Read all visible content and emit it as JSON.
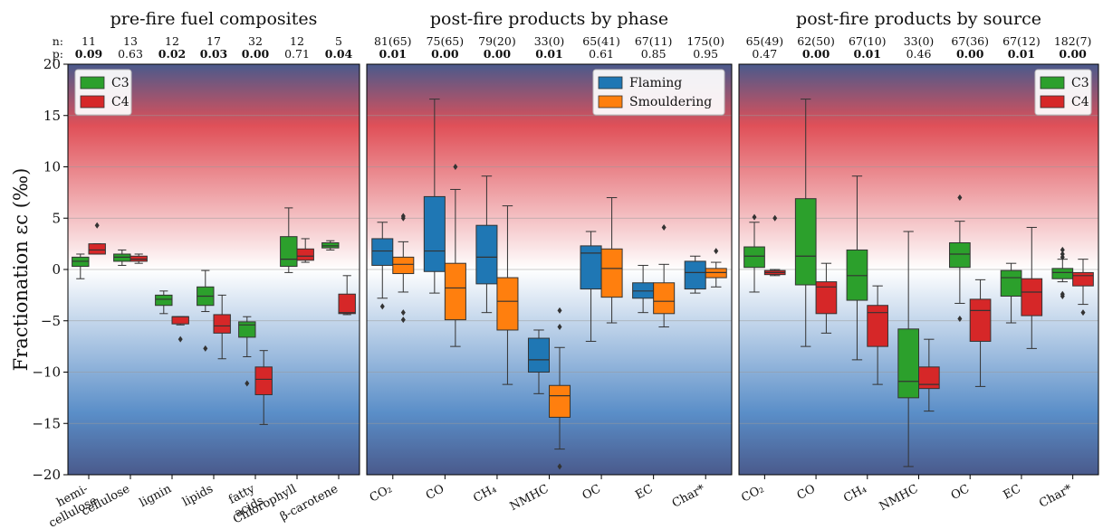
{
  "colors": {
    "c3": "#2ca02c",
    "c4": "#d62728",
    "flaming": "#1f77b4",
    "smouldering": "#ff7f0e",
    "bg_top": "#4a5a8c",
    "bg_red": "#e05058",
    "bg_mid": "#ffffff",
    "bg_blue": "#5a8ec8",
    "bg_bottom": "#4a5a8c"
  },
  "chart_data": {
    "type": "box",
    "ylabel": "Fractionation εc (‰)",
    "ylim": [
      -20,
      20
    ],
    "yticks": [
      "−20",
      "−15",
      "−10",
      "−5",
      "0",
      "5",
      "10",
      "15",
      "20"
    ],
    "ytick_values": [
      -20,
      -15,
      -10,
      -5,
      0,
      5,
      10,
      15,
      20
    ],
    "grid_lines": [
      -15,
      -10,
      -5,
      0,
      5,
      10,
      15
    ],
    "row_labels": {
      "n": "n:",
      "p": "p:"
    },
    "panels": [
      {
        "title": "pre-fire fuel composites",
        "legend": [
          {
            "name": "C3",
            "color": "#2ca02c"
          },
          {
            "name": "C4",
            "color": "#d62728"
          }
        ],
        "legend_position": "top-left",
        "groups": [
          {
            "xlabel": [
              "hemi-",
              "cellulose"
            ],
            "n": "11",
            "p": "0.09",
            "p_bold": true,
            "boxes": [
              {
                "series": "C3",
                "whislo": -0.9,
                "q1": 0.3,
                "med": 0.8,
                "q3": 1.2,
                "whishi": 1.5,
                "fliers": []
              },
              {
                "series": "C4",
                "whislo": 1.5,
                "q1": 1.5,
                "med": 1.9,
                "q3": 2.5,
                "whishi": 2.5,
                "fliers": [
                  4.3
                ]
              }
            ]
          },
          {
            "xlabel": [
              "cellulose"
            ],
            "n": "13",
            "p": "0.63",
            "p_bold": false,
            "boxes": [
              {
                "series": "C3",
                "whislo": 0.4,
                "q1": 0.8,
                "med": 1.2,
                "q3": 1.5,
                "whishi": 1.9,
                "fliers": []
              },
              {
                "series": "C4",
                "whislo": 0.6,
                "q1": 0.8,
                "med": 1.0,
                "q3": 1.3,
                "whishi": 1.5,
                "fliers": []
              }
            ]
          },
          {
            "xlabel": [
              "lignin"
            ],
            "n": "12",
            "p": "0.02",
            "p_bold": true,
            "boxes": [
              {
                "series": "C3",
                "whislo": -4.3,
                "q1": -3.5,
                "med": -2.9,
                "q3": -2.5,
                "whishi": -2.1,
                "fliers": []
              },
              {
                "series": "C4",
                "whislo": -5.4,
                "q1": -5.3,
                "med": -4.6,
                "q3": -4.6,
                "whishi": -4.6,
                "fliers": [
                  -6.8
                ]
              }
            ]
          },
          {
            "xlabel": [
              "lipids"
            ],
            "n": "17",
            "p": "0.03",
            "p_bold": true,
            "boxes": [
              {
                "series": "C3",
                "whislo": -4.1,
                "q1": -3.5,
                "med": -2.6,
                "q3": -1.7,
                "whishi": -0.1,
                "fliers": [
                  -7.7
                ]
              },
              {
                "series": "C4",
                "whislo": -8.7,
                "q1": -6.2,
                "med": -5.5,
                "q3": -4.4,
                "whishi": -2.5,
                "fliers": []
              }
            ]
          },
          {
            "xlabel": [
              "fatty",
              "acids"
            ],
            "n": "32",
            "p": "0.00",
            "p_bold": true,
            "boxes": [
              {
                "series": "C3",
                "whislo": -8.5,
                "q1": -6.6,
                "med": -5.4,
                "q3": -5.1,
                "whishi": -4.6,
                "fliers": [
                  -11.1
                ]
              },
              {
                "series": "C4",
                "whislo": -15.1,
                "q1": -12.2,
                "med": -10.7,
                "q3": -9.5,
                "whishi": -7.9,
                "fliers": []
              }
            ]
          },
          {
            "xlabel": [
              "Chlorophyll"
            ],
            "n": "12",
            "p": "0.71",
            "p_bold": false,
            "boxes": [
              {
                "series": "C3",
                "whislo": -0.3,
                "q1": 0.3,
                "med": 1.0,
                "q3": 3.2,
                "whishi": 6.0,
                "fliers": []
              },
              {
                "series": "C4",
                "whislo": 0.7,
                "q1": 0.9,
                "med": 1.3,
                "q3": 2.0,
                "whishi": 3.0,
                "fliers": []
              }
            ]
          },
          {
            "xlabel": [
              "β-carotene"
            ],
            "n": "5",
            "p": "0.04",
            "p_bold": true,
            "boxes": [
              {
                "series": "C3",
                "whislo": 1.9,
                "q1": 2.1,
                "med": 2.3,
                "q3": 2.6,
                "whishi": 2.8,
                "fliers": []
              },
              {
                "series": "C4",
                "whislo": -4.4,
                "q1": -4.3,
                "med": -4.2,
                "q3": -2.4,
                "whishi": -0.6,
                "fliers": []
              }
            ]
          }
        ]
      },
      {
        "title": "post-fire products by phase",
        "legend": [
          {
            "name": "Flaming",
            "color": "#1f77b4"
          },
          {
            "name": "Smouldering",
            "color": "#ff7f0e"
          }
        ],
        "legend_position": "top-right",
        "groups": [
          {
            "xlabel": [
              "CO₂"
            ],
            "n": "81(65)",
            "p": "0.01",
            "p_bold": true,
            "boxes": [
              {
                "series": "Flaming",
                "whislo": -2.8,
                "q1": 0.4,
                "med": 1.8,
                "q3": 3.0,
                "whishi": 4.6,
                "fliers": [
                  -3.6
                ]
              },
              {
                "series": "Smouldering",
                "whislo": -2.2,
                "q1": -0.4,
                "med": 0.5,
                "q3": 1.2,
                "whishi": 2.7,
                "fliers": [
                  5.0,
                  5.2,
                  -4.2,
                  -4.9
                ]
              }
            ]
          },
          {
            "xlabel": [
              "CO"
            ],
            "n": "75(65)",
            "p": "0.00",
            "p_bold": true,
            "boxes": [
              {
                "series": "Flaming",
                "whislo": -2.3,
                "q1": -0.2,
                "med": 1.8,
                "q3": 7.1,
                "whishi": 16.6,
                "fliers": []
              },
              {
                "series": "Smouldering",
                "whislo": -7.5,
                "q1": -4.9,
                "med": -1.8,
                "q3": 0.6,
                "whishi": 7.8,
                "fliers": [
                  10.0
                ]
              }
            ]
          },
          {
            "xlabel": [
              "CH₄"
            ],
            "n": "79(20)",
            "p": "0.00",
            "p_bold": true,
            "boxes": [
              {
                "series": "Flaming",
                "whislo": -4.2,
                "q1": -1.4,
                "med": 1.2,
                "q3": 4.3,
                "whishi": 9.1,
                "fliers": []
              },
              {
                "series": "Smouldering",
                "whislo": -11.2,
                "q1": -5.9,
                "med": -3.1,
                "q3": -0.8,
                "whishi": 6.2,
                "fliers": []
              }
            ]
          },
          {
            "xlabel": [
              "NMHC"
            ],
            "n": "33(0)",
            "p": "0.01",
            "p_bold": true,
            "boxes": [
              {
                "series": "Flaming",
                "whislo": -12.1,
                "q1": -10.0,
                "med": -8.8,
                "q3": -6.7,
                "whishi": -5.9,
                "fliers": []
              },
              {
                "series": "Smouldering",
                "whislo": -17.5,
                "q1": -14.4,
                "med": -12.3,
                "q3": -11.3,
                "whishi": -7.6,
                "fliers": [
                  -4.0,
                  -5.6,
                  -19.2
                ]
              }
            ]
          },
          {
            "xlabel": [
              "OC"
            ],
            "n": "65(41)",
            "p": "0.61",
            "p_bold": false,
            "boxes": [
              {
                "series": "Flaming",
                "whislo": -7.0,
                "q1": -1.9,
                "med": 1.6,
                "q3": 2.3,
                "whishi": 3.7,
                "fliers": []
              },
              {
                "series": "Smouldering",
                "whislo": -5.2,
                "q1": -2.7,
                "med": 0.1,
                "q3": 2.0,
                "whishi": 7.0,
                "fliers": []
              }
            ]
          },
          {
            "xlabel": [
              "EC"
            ],
            "n": "67(11)",
            "p": "0.85",
            "p_bold": false,
            "boxes": [
              {
                "series": "Flaming",
                "whislo": -4.2,
                "q1": -2.8,
                "med": -2.1,
                "q3": -1.3,
                "whishi": 0.4,
                "fliers": []
              },
              {
                "series": "Smouldering",
                "whislo": -5.6,
                "q1": -4.3,
                "med": -3.1,
                "q3": -1.3,
                "whishi": 0.5,
                "fliers": [
                  4.1
                ]
              }
            ]
          },
          {
            "xlabel": [
              "Char*"
            ],
            "n": "175(0)",
            "p": "0.95",
            "p_bold": false,
            "boxes": [
              {
                "series": "Flaming",
                "whislo": -2.3,
                "q1": -1.9,
                "med": -0.3,
                "q3": 0.8,
                "whishi": 1.3,
                "fliers": []
              },
              {
                "series": "Smouldering",
                "whislo": -1.7,
                "q1": -0.8,
                "med": -0.3,
                "q3": 0.1,
                "whishi": 0.7,
                "fliers": [
                  1.8
                ]
              }
            ]
          }
        ]
      },
      {
        "title": "post-fire products by source",
        "legend": [
          {
            "name": "C3",
            "color": "#2ca02c"
          },
          {
            "name": "C4",
            "color": "#d62728"
          }
        ],
        "legend_position": "top-right",
        "groups": [
          {
            "xlabel": [
              "CO₂"
            ],
            "n": "65(49)",
            "p": "0.47",
            "p_bold": false,
            "boxes": [
              {
                "series": "C3",
                "whislo": -2.2,
                "q1": 0.2,
                "med": 1.3,
                "q3": 2.2,
                "whishi": 4.6,
                "fliers": [
                  5.1
                ]
              },
              {
                "series": "C4",
                "whislo": -0.6,
                "q1": -0.5,
                "med": -0.3,
                "q3": -0.1,
                "whishi": 0.0,
                "fliers": [
                  5.0
                ]
              }
            ]
          },
          {
            "xlabel": [
              "CO"
            ],
            "n": "62(50)",
            "p": "0.00",
            "p_bold": true,
            "boxes": [
              {
                "series": "C3",
                "whislo": -7.5,
                "q1": -1.5,
                "med": 1.3,
                "q3": 6.9,
                "whishi": 16.6,
                "fliers": []
              },
              {
                "series": "C4",
                "whislo": -6.2,
                "q1": -4.3,
                "med": -1.7,
                "q3": -1.2,
                "whishi": 0.6,
                "fliers": []
              }
            ]
          },
          {
            "xlabel": [
              "CH₄"
            ],
            "n": "67(10)",
            "p": "0.01",
            "p_bold": true,
            "boxes": [
              {
                "series": "C3",
                "whislo": -8.8,
                "q1": -3.0,
                "med": -0.6,
                "q3": 1.9,
                "whishi": 9.1,
                "fliers": []
              },
              {
                "series": "C4",
                "whislo": -11.2,
                "q1": -7.5,
                "med": -4.2,
                "q3": -3.5,
                "whishi": -1.6,
                "fliers": []
              }
            ]
          },
          {
            "xlabel": [
              "NMHC"
            ],
            "n": "33(0)",
            "p": "0.46",
            "p_bold": false,
            "boxes": [
              {
                "series": "C3",
                "whislo": -19.2,
                "q1": -12.5,
                "med": -10.9,
                "q3": -5.8,
                "whishi": 3.7,
                "fliers": []
              },
              {
                "series": "C4",
                "whislo": -13.8,
                "q1": -11.6,
                "med": -11.2,
                "q3": -9.5,
                "whishi": -6.8,
                "fliers": []
              }
            ]
          },
          {
            "xlabel": [
              "OC"
            ],
            "n": "67(36)",
            "p": "0.00",
            "p_bold": true,
            "boxes": [
              {
                "series": "C3",
                "whislo": -3.3,
                "q1": 0.2,
                "med": 1.5,
                "q3": 2.6,
                "whishi": 4.7,
                "fliers": [
                  7.0,
                  -4.8
                ]
              },
              {
                "series": "C4",
                "whislo": -11.4,
                "q1": -7.0,
                "med": -4.0,
                "q3": -2.9,
                "whishi": -1.0,
                "fliers": []
              }
            ]
          },
          {
            "xlabel": [
              "EC"
            ],
            "n": "67(12)",
            "p": "0.01",
            "p_bold": true,
            "boxes": [
              {
                "series": "C3",
                "whislo": -5.2,
                "q1": -2.6,
                "med": -0.8,
                "q3": -0.1,
                "whishi": 0.6,
                "fliers": []
              },
              {
                "series": "C4",
                "whislo": -7.7,
                "q1": -4.5,
                "med": -2.2,
                "q3": -0.9,
                "whishi": 4.1,
                "fliers": []
              }
            ]
          },
          {
            "xlabel": [
              "Char*"
            ],
            "n": "182(7)",
            "p": "0.00",
            "p_bold": true,
            "boxes": [
              {
                "series": "C3",
                "whislo": -1.2,
                "q1": -0.9,
                "med": -0.3,
                "q3": 0.1,
                "whishi": 1.0,
                "fliers": [
                  1.9,
                  1.5,
                  1.2,
                  -2.4,
                  -2.6
                ]
              },
              {
                "series": "C4",
                "whislo": -3.4,
                "q1": -1.6,
                "med": -0.6,
                "q3": -0.3,
                "whishi": 1.0,
                "fliers": [
                  -4.2
                ]
              }
            ]
          }
        ]
      }
    ]
  }
}
